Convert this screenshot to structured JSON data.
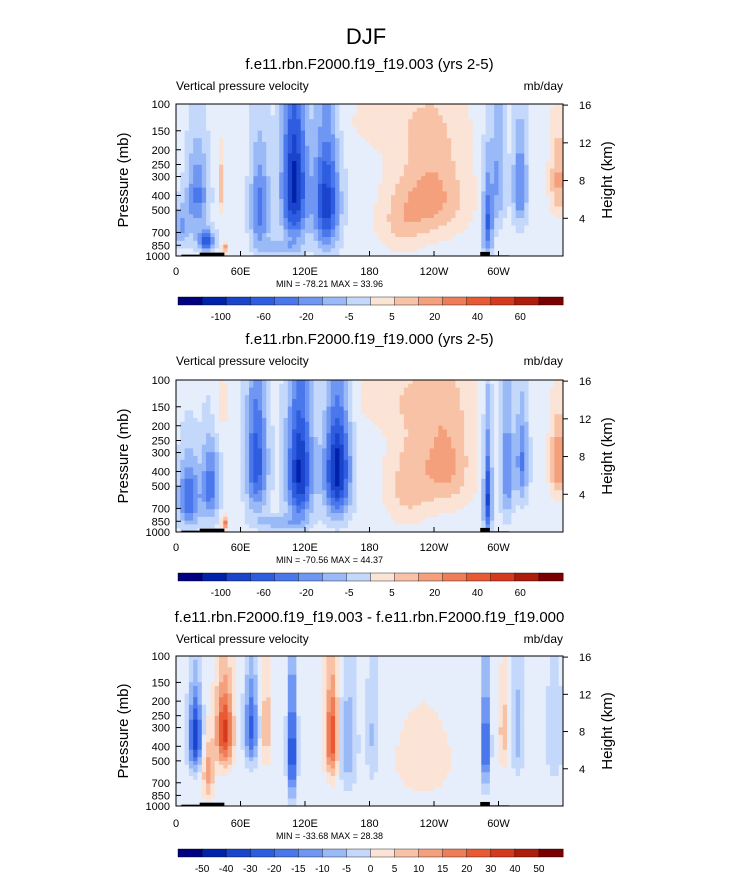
{
  "figure_title": "DJF",
  "colors": {
    "blue_scale": [
      "#000080",
      "#0022aa",
      "#1a44cc",
      "#2e5de0",
      "#4a78ec",
      "#6e96f2",
      "#9ab9f7",
      "#c4d8fb",
      "#e6eefc"
    ],
    "red_scale": [
      "#fbe3d6",
      "#f8c2a7",
      "#f4a07d",
      "#ef7d58",
      "#e85a34",
      "#d43a1e",
      "#ae1c0d",
      "#7a0000"
    ],
    "terrain": "#000000",
    "background": "#ffffff"
  },
  "chart_data": [
    {
      "type": "heatmap",
      "id": "panel1",
      "title": "f.e11.rbn.F2000.f19_f19.003 (yrs 2-5)",
      "left_label": "Vertical pressure velocity",
      "right_label": "mb/day",
      "ylabel": "Pressure (mb)",
      "ylabel_right": "Height (km)",
      "y_ticks": [
        "100",
        "150",
        "200",
        "250",
        "300",
        "400",
        "500",
        "700",
        "850",
        "1000"
      ],
      "y_right_ticks": [
        "16",
        "12",
        "8",
        "4"
      ],
      "x_ticks": [
        "0",
        "60E",
        "120E",
        "180",
        "120W",
        "60W"
      ],
      "xlim": [
        0,
        360
      ],
      "ylim_pressure": [
        1000,
        100
      ],
      "stats_text": "MIN = -78.21   MAX =  33.96",
      "colorbar_labels": [
        "-100",
        "-60",
        "-20",
        "-5",
        "5",
        "20",
        "40",
        "60"
      ],
      "colorbar_bins": 16,
      "min": -78.21,
      "max": 33.96,
      "blobs": [
        {
          "lon": 20,
          "p": 400,
          "value": -40,
          "lon_width": 10,
          "p_width": 250
        },
        {
          "lon": 5,
          "p": 650,
          "value": -30,
          "lon_width": 8,
          "p_width": 200
        },
        {
          "lon": 28,
          "p": 800,
          "value": -60,
          "lon_width": 8,
          "p_width": 120
        },
        {
          "lon": 42,
          "p": 350,
          "value": 25,
          "lon_width": 3,
          "p_width": 150
        },
        {
          "lon": 45,
          "p": 880,
          "value": 33,
          "lon_width": 3,
          "p_width": 80
        },
        {
          "lon": 78,
          "p": 500,
          "value": -45,
          "lon_width": 9,
          "p_width": 350
        },
        {
          "lon": 110,
          "p": 350,
          "value": -75,
          "lon_width": 12,
          "p_width": 400
        },
        {
          "lon": 140,
          "p": 450,
          "value": -65,
          "lon_width": 12,
          "p_width": 400
        },
        {
          "lon": 95,
          "p": 880,
          "value": -20,
          "lon_width": 20,
          "p_width": 100
        },
        {
          "lon": 240,
          "p": 400,
          "value": 30,
          "lon_width": 30,
          "p_width": 300
        },
        {
          "lon": 210,
          "p": 600,
          "value": 18,
          "lon_width": 22,
          "p_width": 300
        },
        {
          "lon": 290,
          "p": 600,
          "value": -50,
          "lon_width": 5,
          "p_width": 400
        },
        {
          "lon": 300,
          "p": 300,
          "value": -30,
          "lon_width": 6,
          "p_width": 300
        },
        {
          "lon": 320,
          "p": 350,
          "value": -40,
          "lon_width": 7,
          "p_width": 250
        },
        {
          "lon": 356,
          "p": 320,
          "value": 30,
          "lon_width": 8,
          "p_width": 200
        },
        {
          "lon": 200,
          "p": 130,
          "value": 8,
          "lon_width": 60,
          "p_width": 80
        }
      ],
      "terrain": [
        {
          "lon0": 22,
          "lon1": 45,
          "p_top": 950
        },
        {
          "lon0": 5,
          "lon1": 22,
          "p_top": 980
        },
        {
          "lon0": 80,
          "lon1": 210,
          "p_top": 995
        },
        {
          "lon0": 283,
          "lon1": 292,
          "p_top": 940
        },
        {
          "lon0": 292,
          "lon1": 310,
          "p_top": 990
        }
      ]
    },
    {
      "type": "heatmap",
      "id": "panel2",
      "title": "f.e11.rbn.F2000.f19_f19.000 (yrs 2-5)",
      "left_label": "Vertical pressure velocity",
      "right_label": "mb/day",
      "ylabel": "Pressure (mb)",
      "ylabel_right": "Height (km)",
      "y_ticks": [
        "100",
        "150",
        "200",
        "250",
        "300",
        "400",
        "500",
        "700",
        "850",
        "1000"
      ],
      "y_right_ticks": [
        "16",
        "12",
        "8",
        "4"
      ],
      "x_ticks": [
        "0",
        "60E",
        "120E",
        "180",
        "120W",
        "60W"
      ],
      "xlim": [
        0,
        360
      ],
      "ylim_pressure": [
        1000,
        100
      ],
      "stats_text": "MIN = -70.56   MAX =  44.37",
      "colorbar_labels": [
        "-100",
        "-60",
        "-20",
        "-5",
        "5",
        "20",
        "40",
        "60"
      ],
      "colorbar_bins": 16,
      "min": -70.56,
      "max": 44.37,
      "blobs": [
        {
          "lon": 12,
          "p": 600,
          "value": -45,
          "lon_width": 10,
          "p_width": 300
        },
        {
          "lon": 32,
          "p": 500,
          "value": -40,
          "lon_width": 8,
          "p_width": 300
        },
        {
          "lon": 45,
          "p": 880,
          "value": 44,
          "lon_width": 3,
          "p_width": 80
        },
        {
          "lon": 75,
          "p": 350,
          "value": -50,
          "lon_width": 10,
          "p_width": 350
        },
        {
          "lon": 115,
          "p": 400,
          "value": -65,
          "lon_width": 12,
          "p_width": 400
        },
        {
          "lon": 150,
          "p": 400,
          "value": -70,
          "lon_width": 12,
          "p_width": 350
        },
        {
          "lon": 95,
          "p": 870,
          "value": -20,
          "lon_width": 20,
          "p_width": 100
        },
        {
          "lon": 250,
          "p": 350,
          "value": 28,
          "lon_width": 25,
          "p_width": 300
        },
        {
          "lon": 215,
          "p": 500,
          "value": 18,
          "lon_width": 20,
          "p_width": 350
        },
        {
          "lon": 290,
          "p": 600,
          "value": -55,
          "lon_width": 4,
          "p_width": 450
        },
        {
          "lon": 308,
          "p": 400,
          "value": -35,
          "lon_width": 6,
          "p_width": 350
        },
        {
          "lon": 322,
          "p": 350,
          "value": -35,
          "lon_width": 6,
          "p_width": 250
        },
        {
          "lon": 356,
          "p": 350,
          "value": 35,
          "lon_width": 8,
          "p_width": 200
        },
        {
          "lon": 200,
          "p": 130,
          "value": 8,
          "lon_width": 60,
          "p_width": 80
        },
        {
          "lon": 40,
          "p": 150,
          "value": 10,
          "lon_width": 10,
          "p_width": 80
        }
      ],
      "terrain": [
        {
          "lon0": 22,
          "lon1": 45,
          "p_top": 950
        },
        {
          "lon0": 5,
          "lon1": 22,
          "p_top": 980
        },
        {
          "lon0": 80,
          "lon1": 210,
          "p_top": 995
        },
        {
          "lon0": 283,
          "lon1": 292,
          "p_top": 940
        },
        {
          "lon0": 292,
          "lon1": 310,
          "p_top": 990
        }
      ]
    },
    {
      "type": "heatmap",
      "id": "panel3",
      "title": "f.e11.rbn.F2000.f19_f19.003 - f.e11.rbn.F2000.f19_f19.000",
      "left_label": "Vertical pressure velocity",
      "right_label": "mb/day",
      "ylabel": "Pressure (mb)",
      "ylabel_right": "Height (km)",
      "y_ticks": [
        "100",
        "150",
        "200",
        "250",
        "300",
        "400",
        "500",
        "700",
        "850",
        "1000"
      ],
      "y_right_ticks": [
        "16",
        "12",
        "8",
        "4"
      ],
      "x_ticks": [
        "0",
        "60E",
        "120E",
        "180",
        "120W",
        "60W"
      ],
      "xlim": [
        0,
        360
      ],
      "ylim_pressure": [
        1000,
        100
      ],
      "stats_text": "MIN = -33.68   MAX =  28.38",
      "colorbar_labels": [
        "-50",
        "-40",
        "-30",
        "-20",
        "-15",
        "-10",
        "-5",
        "0",
        "5",
        "10",
        "15",
        "20",
        "30",
        "40",
        "50"
      ],
      "colorbar_bins": 16,
      "min": -33.68,
      "max": 28.38,
      "blobs": [
        {
          "lon": 18,
          "p": 350,
          "value": -30,
          "lon_width": 6,
          "p_width": 200
        },
        {
          "lon": 45,
          "p": 320,
          "value": 28,
          "lon_width": 8,
          "p_width": 200
        },
        {
          "lon": 30,
          "p": 600,
          "value": 15,
          "lon_width": 5,
          "p_width": 250
        },
        {
          "lon": 70,
          "p": 300,
          "value": -22,
          "lon_width": 6,
          "p_width": 200
        },
        {
          "lon": 84,
          "p": 300,
          "value": 12,
          "lon_width": 4,
          "p_width": 200
        },
        {
          "lon": 108,
          "p": 450,
          "value": -28,
          "lon_width": 4,
          "p_width": 400
        },
        {
          "lon": 145,
          "p": 350,
          "value": 26,
          "lon_width": 6,
          "p_width": 250
        },
        {
          "lon": 160,
          "p": 400,
          "value": -12,
          "lon_width": 8,
          "p_width": 300
        },
        {
          "lon": 183,
          "p": 350,
          "value": -8,
          "lon_width": 6,
          "p_width": 300
        },
        {
          "lon": 230,
          "p": 500,
          "value": 4,
          "lon_width": 35,
          "p_width": 400
        },
        {
          "lon": 288,
          "p": 400,
          "value": -25,
          "lon_width": 4,
          "p_width": 300
        },
        {
          "lon": 305,
          "p": 320,
          "value": 10,
          "lon_width": 5,
          "p_width": 200
        },
        {
          "lon": 318,
          "p": 320,
          "value": -10,
          "lon_width": 6,
          "p_width": 250
        },
        {
          "lon": 352,
          "p": 350,
          "value": -6,
          "lon_width": 8,
          "p_width": 300
        }
      ],
      "terrain": [
        {
          "lon0": 22,
          "lon1": 45,
          "p_top": 950
        },
        {
          "lon0": 5,
          "lon1": 22,
          "p_top": 980
        },
        {
          "lon0": 80,
          "lon1": 210,
          "p_top": 995
        },
        {
          "lon0": 283,
          "lon1": 292,
          "p_top": 940
        },
        {
          "lon0": 292,
          "lon1": 310,
          "p_top": 990
        }
      ]
    }
  ]
}
